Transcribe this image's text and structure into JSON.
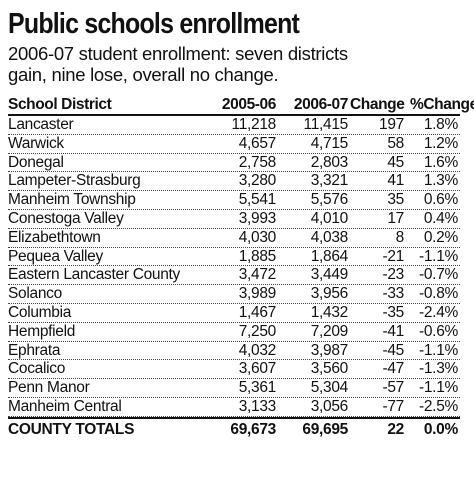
{
  "header": {
    "title": "Public schools enrollment",
    "subtitle": "2006-07 student enrollment: seven districts gain, nine lose, overall no change."
  },
  "chart_data": {
    "type": "table",
    "columns": [
      "School District",
      "2005-06",
      "2006-07",
      "Change",
      "%Change"
    ],
    "rows": [
      [
        "Lancaster",
        "11,218",
        "11,415",
        "197",
        "1.8%"
      ],
      [
        "Warwick",
        "4,657",
        "4,715",
        "58",
        "1.2%"
      ],
      [
        "Donegal",
        "2,758",
        "2,803",
        "45",
        "1.6%"
      ],
      [
        "Lampeter-Strasburg",
        "3,280",
        "3,321",
        "41",
        "1.3%"
      ],
      [
        "Manheim Township",
        "5,541",
        "5,576",
        "35",
        "0.6%"
      ],
      [
        "Conestoga Valley",
        "3,993",
        "4,010",
        "17",
        "0.4%"
      ],
      [
        "Elizabethtown",
        "4,030",
        "4,038",
        "8",
        "0.2%"
      ],
      [
        "Pequea Valley",
        "1,885",
        "1,864",
        "-21",
        "-1.1%"
      ],
      [
        "Eastern Lancaster County",
        "3,472",
        "3,449",
        "-23",
        "-0.7%"
      ],
      [
        "Solanco",
        "3,989",
        "3,956",
        "-33",
        "-0.8%"
      ],
      [
        "Columbia",
        "1,467",
        "1,432",
        "-35",
        "-2.4%"
      ],
      [
        "Hempfield",
        "7,250",
        "7,209",
        "-41",
        "-0.6%"
      ],
      [
        "Ephrata",
        "4,032",
        "3,987",
        "-45",
        "-1.1%"
      ],
      [
        "Cocalico",
        "3,607",
        "3,560",
        "-47",
        "-1.3%"
      ],
      [
        "Penn Manor",
        "5,361",
        "5,304",
        "-57",
        "-1.1%"
      ],
      [
        "Manheim Central",
        "3,133",
        "3,056",
        "-77",
        "-2.5%"
      ]
    ],
    "totals": [
      "COUNTY TOTALS",
      "69,673",
      "69,695",
      "22",
      "0.0%"
    ]
  }
}
